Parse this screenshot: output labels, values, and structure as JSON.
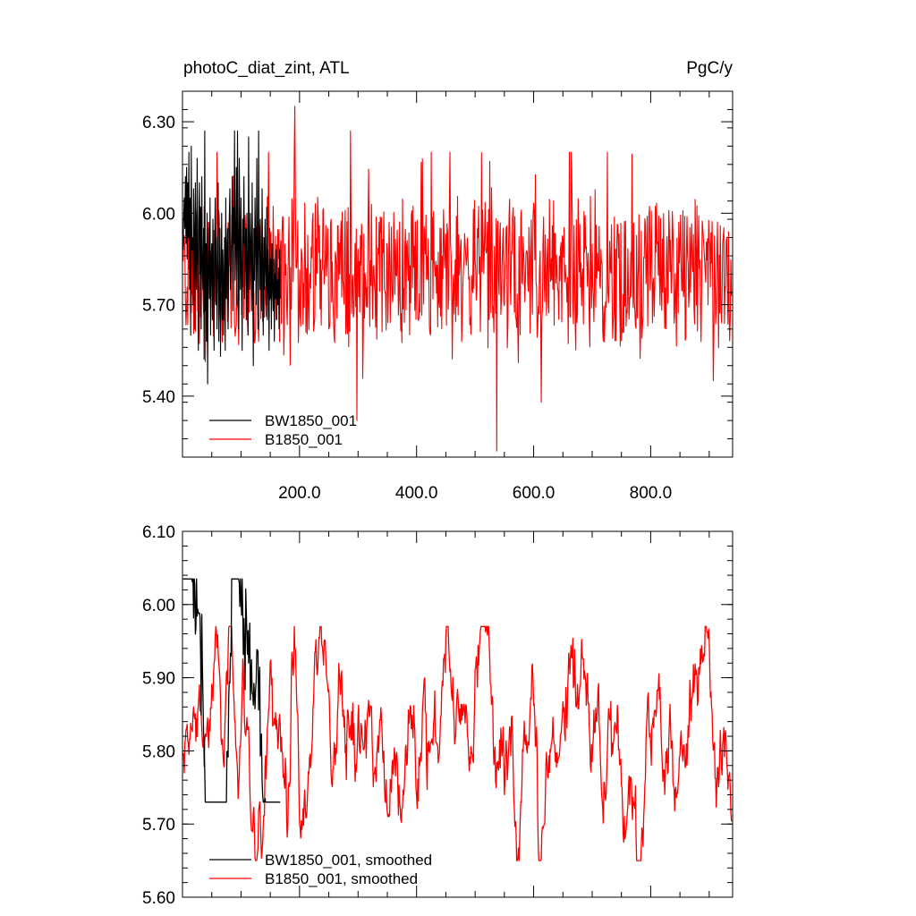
{
  "chart_data": [
    {
      "type": "line",
      "title_left": "photoC_diat_zint, ATL",
      "title_right": "PgC/y",
      "xlim": [
        0,
        940
      ],
      "ylim": [
        5.2,
        6.4
      ],
      "x_ticks": [
        200,
        400,
        600,
        800
      ],
      "x_tick_labels": [
        "200.0",
        "400.0",
        "600.0",
        "800.0"
      ],
      "y_ticks": [
        5.4,
        5.7,
        6.0,
        6.3
      ],
      "y_tick_labels": [
        "5.40",
        "5.70",
        "6.00",
        "6.30"
      ],
      "legend_position": "bottom-left",
      "series": [
        {
          "name": "BW1850_001",
          "color": "#000000",
          "x_start": 1,
          "x_step": 1,
          "values": [
            5.88,
            5.98,
            6.05,
            5.95,
            6.12,
            5.9,
            6.15,
            5.85,
            6.1,
            5.92,
            6.2,
            5.75,
            6.05,
            5.6,
            6.22,
            5.88,
            5.92,
            5.7,
            6.08,
            5.95,
            5.62,
            6.1,
            5.82,
            5.75,
            6.18,
            5.9,
            5.55,
            5.98,
            6.1,
            5.8,
            6.02,
            5.62,
            6.12,
            5.85,
            5.75,
            5.95,
            5.52,
            6.27,
            5.68,
            5.9,
            5.58,
            6.0,
            5.44,
            5.82,
            5.95,
            5.72,
            6.05,
            5.6,
            5.85,
            5.9,
            5.65,
            5.98,
            5.78,
            5.55,
            5.88,
            6.05,
            5.7,
            5.92,
            5.62,
            5.83,
            6.1,
            5.58,
            5.75,
            5.95,
            5.53,
            5.8,
            6.0,
            5.65,
            5.88,
            5.6,
            5.78,
            5.92,
            5.55,
            6.05,
            5.72,
            5.85,
            5.95,
            5.62,
            5.8,
            5.98,
            6.08,
            5.75,
            5.85,
            5.93,
            6.12,
            5.68,
            6.02,
            5.9,
            6.27,
            5.78,
            5.88,
            6.15,
            5.7,
            6.27,
            5.85,
            5.62,
            6.18,
            5.95,
            5.75,
            6.05,
            5.82,
            5.55,
            5.98,
            5.9,
            6.12,
            5.72,
            5.88,
            5.95,
            5.65,
            6.0,
            5.8,
            5.6,
            6.25,
            5.85,
            5.75,
            6.0,
            5.9,
            5.68,
            6.1,
            5.82,
            5.5,
            5.95,
            5.78,
            6.05,
            5.88,
            5.7,
            6.18,
            5.85,
            5.62,
            6.27,
            5.9,
            5.75,
            5.98,
            5.8,
            5.68,
            6.08,
            5.85,
            5.6,
            5.92,
            5.75,
            5.98,
            5.82,
            5.7,
            6.02,
            5.65,
            5.88,
            5.78,
            5.55,
            5.95,
            5.72,
            5.85,
            5.62,
            5.9,
            5.75,
            5.68,
            5.85,
            5.58,
            5.8,
            5.72,
            5.88,
            5.65,
            5.78,
            5.7,
            5.82,
            5.62,
            5.88,
            5.72
          ]
        },
        {
          "name": "B1850_001",
          "color": "#ff0000",
          "x_start": 1,
          "x_step": 1,
          "x_end": 938,
          "min": 5.22,
          "max": 6.35,
          "typical_range": [
            5.55,
            6.05
          ]
        }
      ]
    },
    {
      "type": "line",
      "xlim": [
        0,
        940
      ],
      "ylim": [
        5.6,
        6.1
      ],
      "y_ticks": [
        5.6,
        5.7,
        5.8,
        5.9,
        6.0,
        6.1
      ],
      "y_tick_labels": [
        "5.60",
        "5.70",
        "5.80",
        "5.90",
        "6.00",
        "6.10"
      ],
      "legend_position": "bottom-left",
      "series": [
        {
          "name": "BW1850_001, smoothed",
          "color": "#000000",
          "x_start": 1,
          "x_step": 1,
          "min": 5.73,
          "max": 6.035
        },
        {
          "name": "B1850_001, smoothed",
          "color": "#ff0000",
          "x_start": 1,
          "x_step": 1,
          "x_end": 938,
          "min": 5.65,
          "max": 5.97
        }
      ]
    }
  ]
}
